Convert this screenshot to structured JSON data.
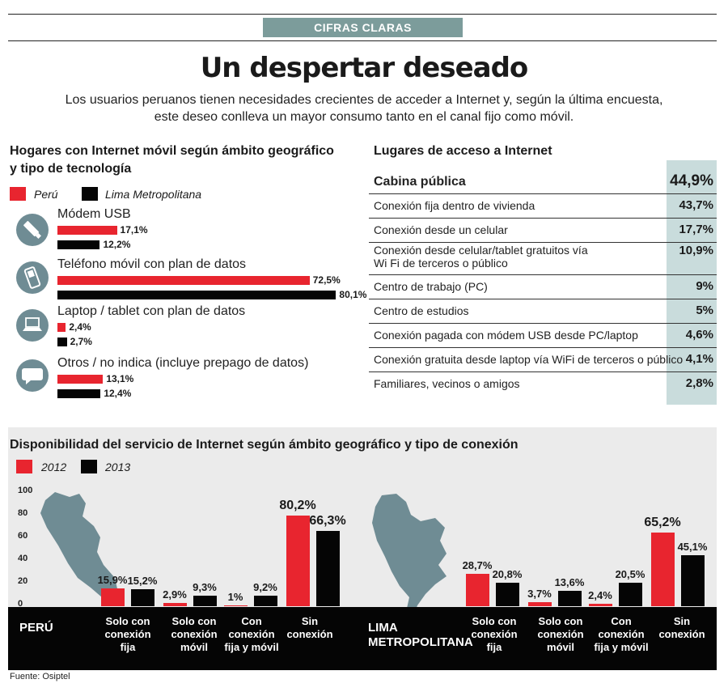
{
  "header": {
    "tag": "CIFRAS CLARAS",
    "title": "Un despertar deseado",
    "intro_line1": "Los usuarios peruanos tienen necesidades crecientes de acceder a Internet y, según la última encuesta,",
    "intro_line2": "este deseo conlleva un mayor consumo tanto en el canal fijo como móvil."
  },
  "colors": {
    "red": "#e8252f",
    "black": "#050505",
    "teal": "#7c9c9b",
    "teal_light": "#c9dcdc",
    "icon": "#6f8c94"
  },
  "chart_data": [
    {
      "type": "bar",
      "orientation": "horizontal",
      "title_line1": "Hogares con Internet móvil según ámbito geográfico",
      "title_line2": "y tipo de tecnología",
      "categories": [
        "Módem USB",
        "Teléfono móvil con plan de datos",
        "Laptop / tablet con plan de datos",
        "Otros / no indica (incluye prepago de datos)"
      ],
      "icons": [
        "usb-icon",
        "phone-icon",
        "laptop-icon",
        "chat-icon"
      ],
      "series": [
        {
          "name": "Perú",
          "color": "#e8252f",
          "values": [
            17.1,
            72.5,
            2.4,
            13.1
          ],
          "labels": [
            "17,1%",
            "72,5%",
            "2,4%",
            "13,1%"
          ]
        },
        {
          "name": "Lima Metropolitana",
          "color": "#050505",
          "values": [
            12.2,
            80.1,
            2.7,
            12.4
          ],
          "labels": [
            "12,2%",
            "80,1%",
            "2,7%",
            "12,4%"
          ]
        }
      ],
      "xlim": [
        0,
        100
      ]
    },
    {
      "type": "table",
      "title": "Lugares de acceso a Internet",
      "rows": [
        {
          "label": "Cabina pública",
          "value": "44,9%"
        },
        {
          "label": "Conexión fija dentro de vivienda",
          "value": "43,7%"
        },
        {
          "label": "Conexión desde un celular",
          "value": "17,7%"
        },
        {
          "label_line1": "Conexión desde celular/tablet gratuitos vía",
          "label_line2": "Wi Fi de terceros o público",
          "value": "10,9%"
        },
        {
          "label": "Centro de trabajo (PC)",
          "value": "9%"
        },
        {
          "label": "Centro de estudios",
          "value": "5%"
        },
        {
          "label": "Conexión pagada con módem USB desde PC/laptop",
          "value": "4,6%"
        },
        {
          "label": "Conexión gratuita desde laptop vía WiFi de terceros o público",
          "value": "4,1%"
        },
        {
          "label": "Familiares, vecinos o amigos",
          "value": "2,8%"
        }
      ]
    },
    {
      "type": "bar",
      "orientation": "vertical",
      "title": "Disponibilidad del servicio de Internet según ámbito geográfico  y tipo de conexión",
      "ylim": [
        0,
        100
      ],
      "yticks": [
        "100",
        "80",
        "60",
        "40",
        "20",
        "0"
      ],
      "legend": [
        "2012",
        "2013"
      ],
      "groups": [
        {
          "region": "PERÚ",
          "categories": [
            [
              "Solo con",
              "conexión",
              "fija"
            ],
            [
              "Solo con",
              "conexión",
              "móvil"
            ],
            [
              "Con",
              "conexión",
              "fija y móvil"
            ],
            [
              "Sin",
              "conexión"
            ]
          ],
          "series": [
            {
              "name": "2012",
              "values": [
                15.9,
                2.9,
                1,
                80.2
              ],
              "labels": [
                "15,9%",
                "2,9%",
                "1%",
                "80,2%"
              ]
            },
            {
              "name": "2013",
              "values": [
                15.2,
                9.3,
                9.2,
                66.3
              ],
              "labels": [
                "15,2%",
                "9,3%",
                "9,2%",
                "66,3%"
              ]
            }
          ]
        },
        {
          "region_line1": "LIMA",
          "region_line2": "METROPOLITANA",
          "categories": [
            [
              "Solo con",
              "conexión",
              "fija"
            ],
            [
              "Solo con",
              "conexión",
              "móvil"
            ],
            [
              "Con",
              "conexión",
              "fija y móvil"
            ],
            [
              "Sin",
              "conexión"
            ]
          ],
          "series": [
            {
              "name": "2012",
              "values": [
                28.7,
                3.7,
                2.4,
                65.2
              ],
              "labels": [
                "28,7%",
                "3,7%",
                "2,4%",
                "65,2%"
              ]
            },
            {
              "name": "2013",
              "values": [
                20.8,
                13.6,
                20.5,
                45.1
              ],
              "labels": [
                "20,8%",
                "13,6%",
                "20,5%",
                "45,1%"
              ]
            }
          ]
        }
      ]
    }
  ],
  "source": "Fuente: Osiptel"
}
